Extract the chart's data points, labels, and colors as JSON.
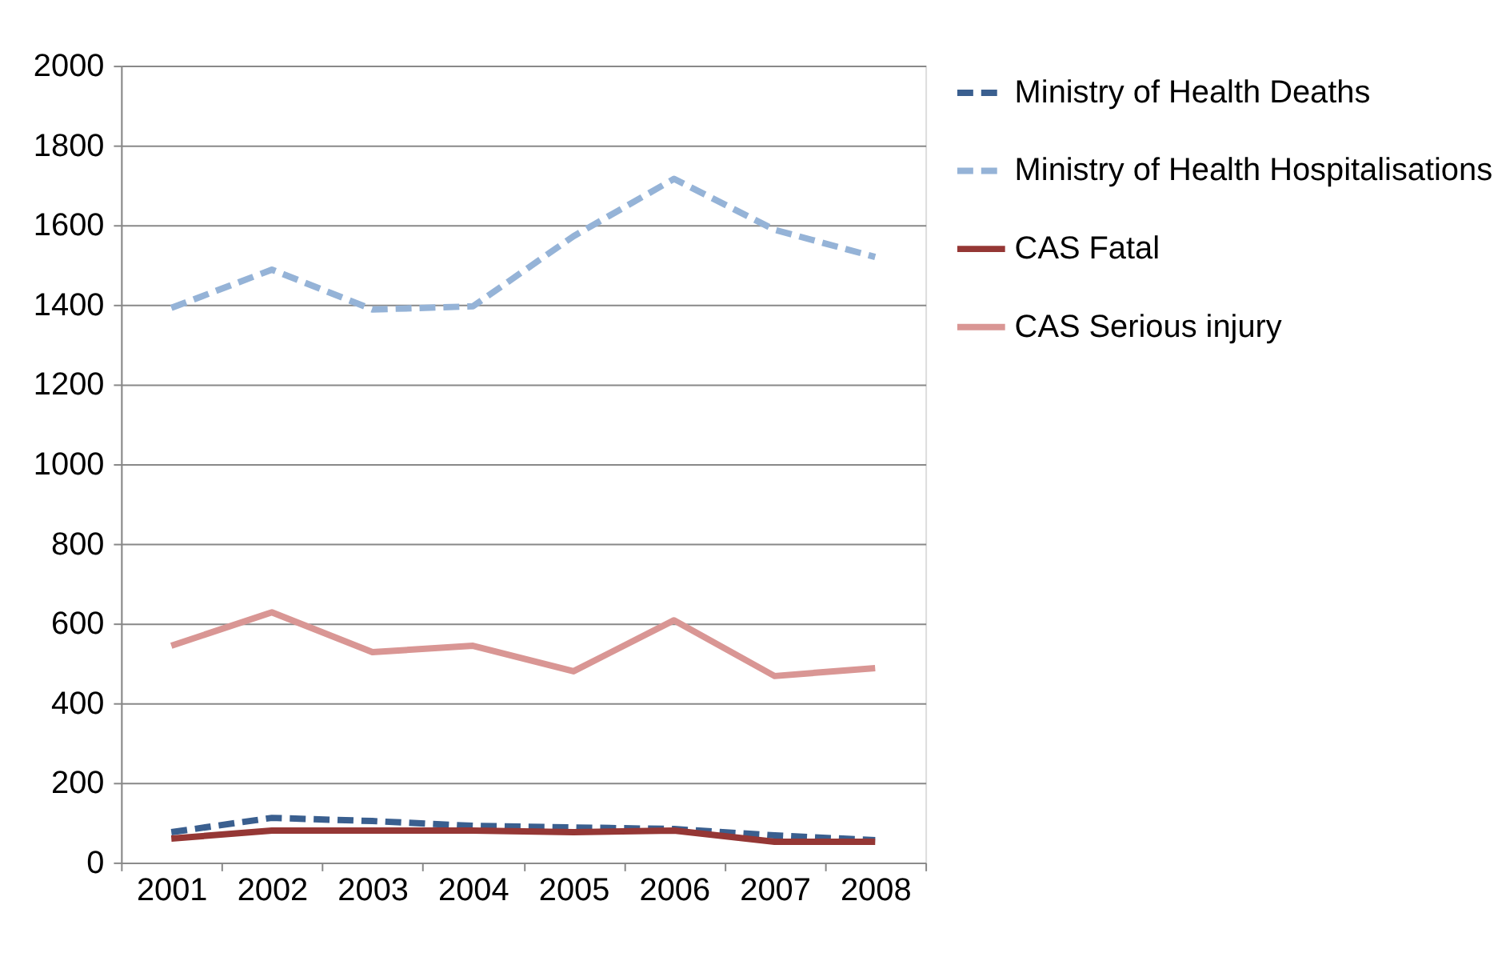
{
  "chart_data": {
    "type": "line",
    "categories": [
      "2001",
      "2002",
      "2003",
      "2004",
      "2005",
      "2006",
      "2007",
      "2008"
    ],
    "series": [
      {
        "name": "Ministry of Health Deaths",
        "color": "#3a5f8f",
        "line_style": "dashed",
        "values": [
          76,
          112,
          104,
          92,
          88,
          84,
          68,
          56
        ]
      },
      {
        "name": "Ministry of Health Hospitalisations",
        "color": "#95b3d7",
        "line_style": "dashed",
        "values": [
          1392,
          1488,
          1388,
          1396,
          1572,
          1716,
          1588,
          1520
        ]
      },
      {
        "name": "CAS Fatal",
        "color": "#953735",
        "line_style": "solid",
        "values": [
          60,
          80,
          80,
          80,
          76,
          80,
          52,
          52
        ]
      },
      {
        "name": "CAS Serious injury",
        "color": "#d99694",
        "line_style": "solid",
        "values": [
          544,
          628,
          528,
          544,
          480,
          608,
          468,
          488
        ]
      }
    ],
    "ylim": [
      0,
      2000
    ],
    "yticks": [
      0,
      200,
      400,
      600,
      800,
      1000,
      1200,
      1400,
      1600,
      1800,
      2000
    ],
    "grid": "y",
    "legend": "right",
    "marker": "none"
  }
}
